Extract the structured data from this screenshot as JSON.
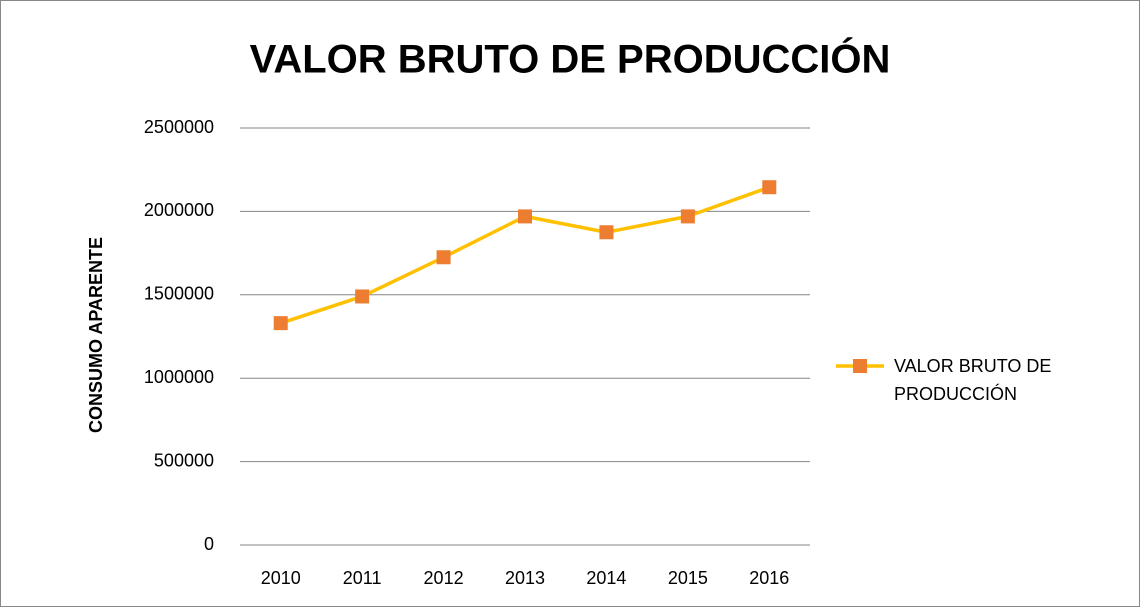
{
  "chart_data": {
    "type": "line",
    "title": "VALOR BRUTO DE PRODUCCIÓN",
    "y_label": "CONSUMO APARENTE",
    "categories": [
      "2010",
      "2011",
      "2012",
      "2013",
      "2014",
      "2015",
      "2016"
    ],
    "series": [
      {
        "name": "VALOR BRUTO DE PRODUCCIÓN",
        "color": "#FFC000",
        "marker_color": "#ED7D31",
        "values": [
          1330000,
          1490000,
          1725000,
          1970000,
          1875000,
          1970000,
          2145000
        ]
      }
    ],
    "ylim": [
      0,
      2500000
    ],
    "yticks": [
      0,
      500000,
      1000000,
      1500000,
      2000000,
      2500000
    ],
    "grid": true,
    "legend": "right"
  }
}
